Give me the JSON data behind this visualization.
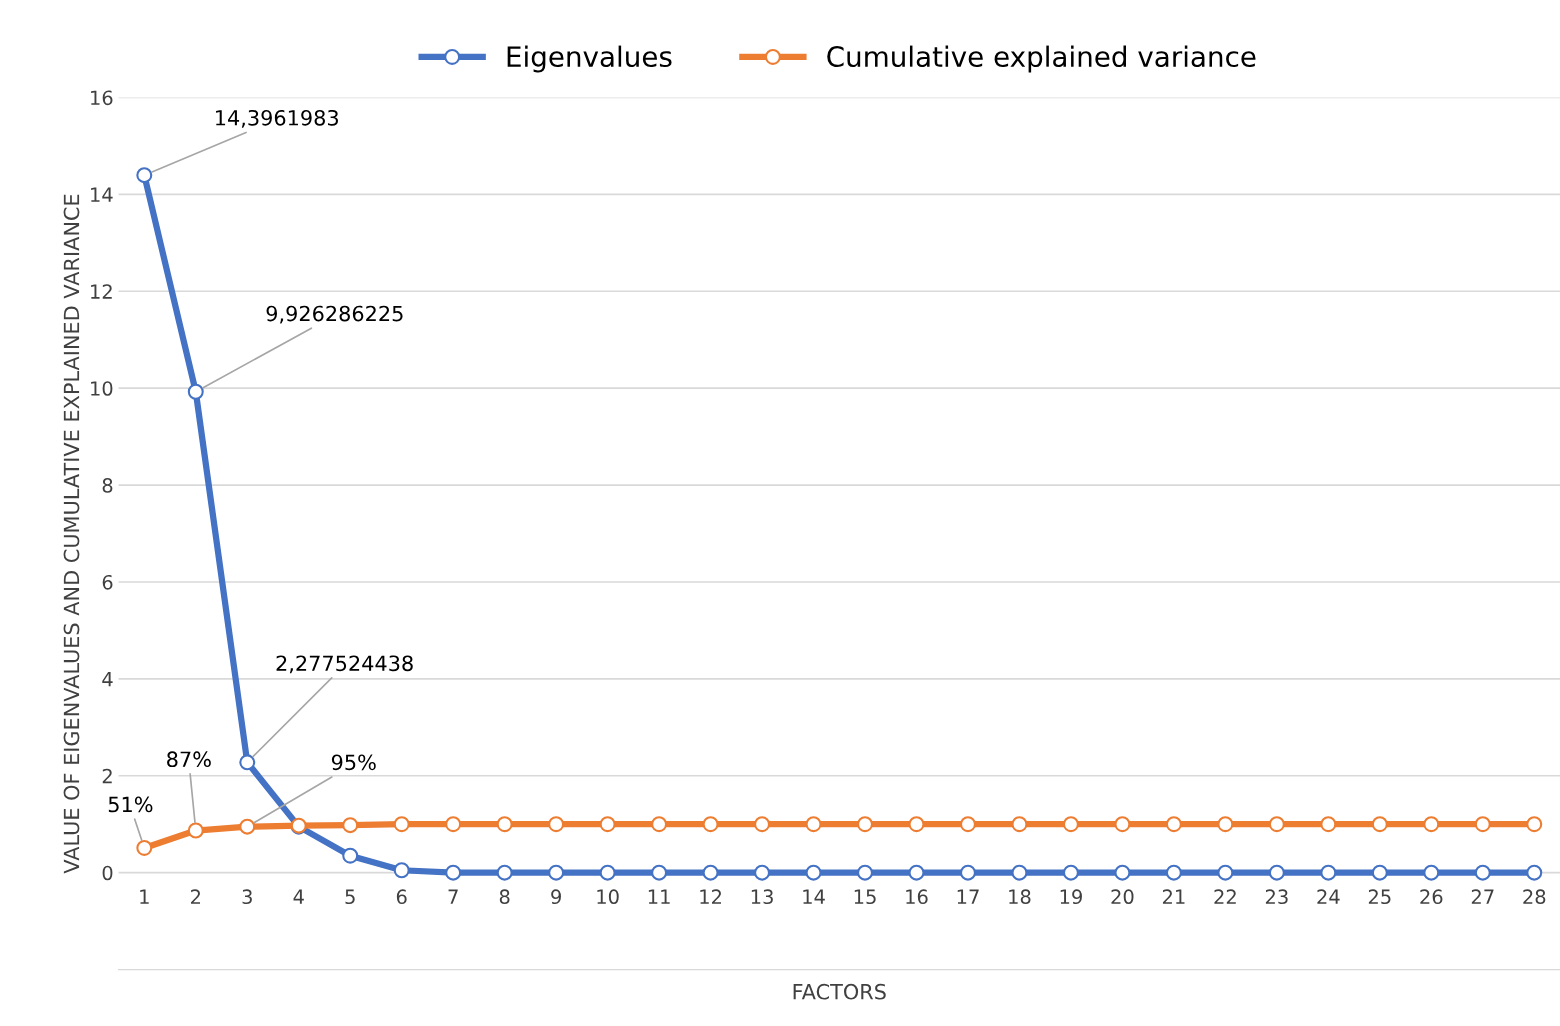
{
  "chart_data": {
    "type": "line",
    "xlabel": "FACTORS",
    "ylabel": "VALUE OF EIGENVALUES AND CUMULATIVE EXPLAINED VARIANCE",
    "categories": [
      "1",
      "2",
      "3",
      "4",
      "5",
      "6",
      "7",
      "8",
      "9",
      "10",
      "11",
      "12",
      "13",
      "14",
      "15",
      "16",
      "17",
      "18",
      "19",
      "20",
      "21",
      "22",
      "23",
      "24",
      "25",
      "26",
      "27",
      "28"
    ],
    "series": [
      {
        "name": "Eigenvalues",
        "color": "#4472c4",
        "values": [
          14.3961983,
          9.926286225,
          2.277524438,
          0.95,
          0.35,
          0.05,
          0.0,
          0.0,
          0.0,
          0.0,
          0.0,
          0.0,
          0.0,
          0.0,
          0.0,
          0.0,
          0.0,
          0.0,
          0.0,
          0.0,
          0.0,
          0.0,
          0.0,
          0.0,
          0.0,
          0.0,
          0.0,
          0.0
        ],
        "value_labels": [
          "14,3961983",
          "9,926286225",
          "2,277524438",
          null,
          null,
          null,
          null,
          null,
          null,
          null,
          null,
          null,
          null,
          null,
          null,
          null,
          null,
          null,
          null,
          null,
          null,
          null,
          null,
          null,
          null,
          null,
          null,
          null
        ]
      },
      {
        "name": "Cumulative explained variance",
        "color": "#ed7d31",
        "values": [
          0.51,
          0.87,
          0.95,
          0.97,
          0.98,
          1.0,
          1.0,
          1.0,
          1.0,
          1.0,
          1.0,
          1.0,
          1.0,
          1.0,
          1.0,
          1.0,
          1.0,
          1.0,
          1.0,
          1.0,
          1.0,
          1.0,
          1.0,
          1.0,
          1.0,
          1.0,
          1.0,
          1.0
        ],
        "value_labels": [
          "51%",
          "87%",
          "95%",
          null,
          null,
          null,
          null,
          null,
          null,
          null,
          null,
          null,
          null,
          null,
          null,
          null,
          null,
          null,
          null,
          null,
          null,
          null,
          null,
          null,
          null,
          null,
          null,
          null
        ]
      }
    ],
    "ylim": [
      -2,
      16
    ],
    "yticks": [
      0,
      2,
      4,
      6,
      8,
      10,
      12,
      14,
      16
    ],
    "grid": "y",
    "legend": "top",
    "marker": "circle",
    "line_style": "solid"
  }
}
